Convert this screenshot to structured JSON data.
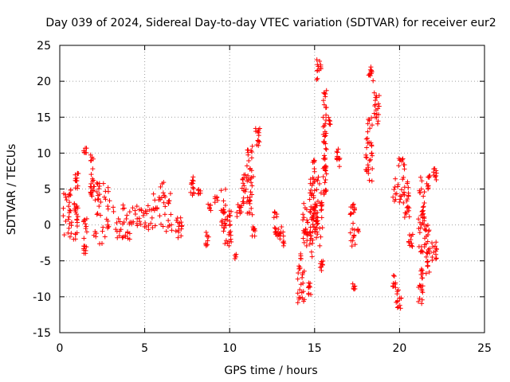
{
  "chart_data": {
    "type": "scatter",
    "title": "Day 039 of 2024, Sidereal Day-to-day VTEC variation (SDTVAR) for receiver eur2",
    "xlabel": "GPS time / hours",
    "ylabel": "SDTVAR / TECUs",
    "xlim": [
      0,
      25
    ],
    "ylim": [
      -15,
      25
    ],
    "xticks": [
      0,
      5,
      10,
      15,
      20,
      25
    ],
    "yticks": [
      -15,
      -10,
      -5,
      0,
      5,
      10,
      15,
      20,
      25
    ],
    "grid": true,
    "legend": "none",
    "marker": "plus",
    "color": "#ff0000",
    "series": [
      {
        "name": "SDTVAR",
        "clusters": [
          {
            "x": [
              0.2,
              0.7
            ],
            "y": [
              -2,
              5
            ]
          },
          {
            "x": [
              0.8,
              1.1
            ],
            "y": [
              -2,
              3
            ]
          },
          {
            "x": [
              0.9,
              1.1
            ],
            "y": [
              5,
              8
            ]
          },
          {
            "x": [
              1.4,
              1.6
            ],
            "y": [
              -4,
              1
            ]
          },
          {
            "x": [
              1.4,
              1.6
            ],
            "y": [
              10,
              11
            ]
          },
          {
            "x": [
              1.8,
              2.0
            ],
            "y": [
              4,
              10
            ]
          },
          {
            "x": [
              2.0,
              3.0
            ],
            "y": [
              -3,
              6
            ]
          },
          {
            "x": [
              3.0,
              4.5
            ],
            "y": [
              -2,
              3
            ]
          },
          {
            "x": [
              4.5,
              5.5
            ],
            "y": [
              -1,
              3
            ]
          },
          {
            "x": [
              5.5,
              6.6
            ],
            "y": [
              -1,
              6
            ]
          },
          {
            "x": [
              6.8,
              7.2
            ],
            "y": [
              -2,
              1
            ]
          },
          {
            "x": [
              7.7,
              7.9
            ],
            "y": [
              4,
              7
            ]
          },
          {
            "x": [
              8.1,
              8.3
            ],
            "y": [
              4,
              5
            ]
          },
          {
            "x": [
              8.6,
              8.8
            ],
            "y": [
              -3,
              -1
            ]
          },
          {
            "x": [
              8.7,
              8.9
            ],
            "y": [
              2,
              3
            ]
          },
          {
            "x": [
              9.1,
              9.3
            ],
            "y": [
              3,
              4
            ]
          },
          {
            "x": [
              9.5,
              9.8
            ],
            "y": [
              -1,
              5
            ]
          },
          {
            "x": [
              9.7,
              10.1
            ],
            "y": [
              -3,
              2
            ]
          },
          {
            "x": [
              10.3,
              10.4
            ],
            "y": [
              -5,
              -4
            ]
          },
          {
            "x": [
              10.4,
              10.7
            ],
            "y": [
              1,
              3
            ]
          },
          {
            "x": [
              10.7,
              11.0
            ],
            "y": [
              3,
              7
            ]
          },
          {
            "x": [
              11.0,
              11.4
            ],
            "y": [
              1,
              11
            ]
          },
          {
            "x": [
              11.3,
              11.5
            ],
            "y": [
              -2,
              0
            ]
          },
          {
            "x": [
              11.5,
              11.8
            ],
            "y": [
              11,
              14
            ]
          },
          {
            "x": [
              12.6,
              12.8
            ],
            "y": [
              1,
              2
            ]
          },
          {
            "x": [
              12.6,
              12.9
            ],
            "y": [
              -2,
              0
            ]
          },
          {
            "x": [
              12.9,
              13.2
            ],
            "y": [
              -3,
              0
            ]
          },
          {
            "x": [
              14.0,
              14.4
            ],
            "y": [
              -11,
              -4
            ]
          },
          {
            "x": [
              14.3,
              14.6
            ],
            "y": [
              -3,
              3
            ]
          },
          {
            "x": [
              14.6,
              14.8
            ],
            "y": [
              -10,
              -8
            ]
          },
          {
            "x": [
              14.7,
              15.0
            ],
            "y": [
              -5,
              9
            ]
          },
          {
            "x": [
              14.9,
              15.1
            ],
            "y": [
              -1,
              3
            ]
          },
          {
            "x": [
              15.0,
              15.5
            ],
            "y": [
              -3,
              7
            ]
          },
          {
            "x": [
              15.1,
              15.4
            ],
            "y": [
              20,
              23
            ]
          },
          {
            "x": [
              15.3,
              15.5
            ],
            "y": [
              -7,
              -5
            ]
          },
          {
            "x": [
              15.5,
              15.7
            ],
            "y": [
              4,
              19
            ]
          },
          {
            "x": [
              15.8,
              16.0
            ],
            "y": [
              14,
              15
            ]
          },
          {
            "x": [
              16.3,
              16.5
            ],
            "y": [
              8,
              11
            ]
          },
          {
            "x": [
              17.1,
              17.4
            ],
            "y": [
              -3,
              3
            ]
          },
          {
            "x": [
              17.2,
              17.4
            ],
            "y": [
              -9,
              -8
            ]
          },
          {
            "x": [
              17.5,
              17.6
            ],
            "y": [
              -1,
              0
            ]
          },
          {
            "x": [
              18.0,
              18.4
            ],
            "y": [
              6,
              15
            ]
          },
          {
            "x": [
              18.1,
              18.5
            ],
            "y": [
              20,
              22
            ]
          },
          {
            "x": [
              18.5,
              18.8
            ],
            "y": [
              14,
              19
            ]
          },
          {
            "x": [
              19.6,
              19.8
            ],
            "y": [
              -9,
              -7
            ]
          },
          {
            "x": [
              19.8,
              20.1
            ],
            "y": [
              -12,
              -9
            ]
          },
          {
            "x": [
              19.6,
              20.3
            ],
            "y": [
              3,
              10
            ]
          },
          {
            "x": [
              20.3,
              20.6
            ],
            "y": [
              1,
              6
            ]
          },
          {
            "x": [
              20.5,
              20.8
            ],
            "y": [
              -3,
              -1
            ]
          },
          {
            "x": [
              21.1,
              21.4
            ],
            "y": [
              -11,
              -6
            ]
          },
          {
            "x": [
              21.1,
              21.5
            ],
            "y": [
              -4,
              7
            ]
          },
          {
            "x": [
              21.5,
              21.8
            ],
            "y": [
              -7,
              0
            ]
          },
          {
            "x": [
              21.6,
              21.8
            ],
            "y": [
              5,
              7
            ]
          },
          {
            "x": [
              21.9,
              22.2
            ],
            "y": [
              -5,
              -2
            ]
          },
          {
            "x": [
              22.0,
              22.2
            ],
            "y": [
              6,
              8
            ]
          }
        ]
      }
    ]
  }
}
